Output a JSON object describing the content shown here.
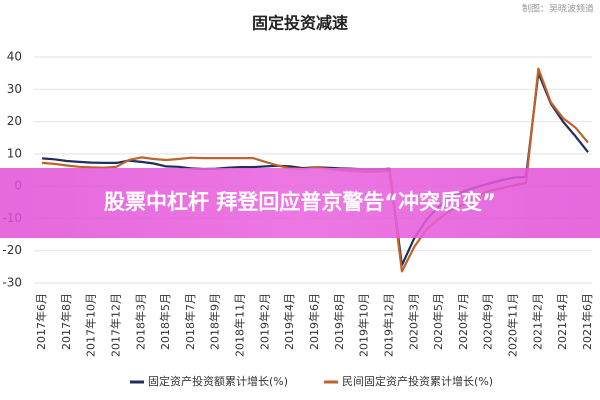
{
  "chart_data": {
    "type": "line",
    "title": "固定投资减速",
    "source": "制图：吴晓波频道",
    "categories": [
      "2017年6月",
      null,
      "2017年8月",
      null,
      "2017年10月",
      null,
      "2017年12月",
      null,
      "2018年3月",
      null,
      "2018年5月",
      null,
      "2018年7月",
      null,
      "2018年9月",
      null,
      "2018年11月",
      null,
      "2019年2月",
      null,
      "2019年4月",
      null,
      "2019年6月",
      null,
      "2019年8月",
      null,
      "2019年10月",
      null,
      "2019年12月",
      null,
      "2020年3月",
      null,
      "2020年5月",
      null,
      "2020年7月",
      null,
      "2020年9月",
      null,
      "2020年11月",
      null,
      "2021年2月",
      null,
      "2021年4月",
      null,
      "2021年6月"
    ],
    "series": [
      {
        "name": "固定资产投资额累计增长(%)",
        "color": "#1f2f5c",
        "values": [
          8.6,
          8.3,
          7.8,
          7.5,
          7.3,
          7.2,
          7.2,
          7.9,
          7.5,
          7.0,
          6.1,
          6.0,
          5.5,
          5.3,
          5.4,
          5.7,
          5.9,
          5.9,
          6.1,
          6.3,
          6.1,
          5.6,
          5.8,
          5.7,
          5.5,
          5.4,
          5.2,
          5.2,
          5.4,
          -24.5,
          -16.1,
          -10.3,
          -6.3,
          -3.1,
          -1.6,
          -0.3,
          0.8,
          1.8,
          2.6,
          2.9,
          35.0,
          25.6,
          19.9,
          15.4,
          10.5
        ]
      },
      {
        "name": "民间固定资产投资累计增长(%)",
        "color": "#c0622a",
        "values": [
          7.2,
          6.9,
          6.4,
          6.0,
          5.8,
          5.7,
          6.0,
          8.1,
          8.9,
          8.4,
          8.1,
          8.4,
          8.8,
          8.7,
          8.7,
          8.7,
          8.7,
          8.7,
          7.5,
          6.4,
          5.5,
          5.3,
          5.7,
          5.4,
          4.9,
          4.7,
          4.4,
          4.5,
          4.7,
          -26.4,
          -18.8,
          -13.3,
          -10.1,
          -7.3,
          -5.7,
          -3.3,
          -1.5,
          -0.7,
          0.2,
          1.0,
          36.4,
          26.0,
          21.0,
          18.1,
          13.5
        ]
      }
    ],
    "ylim": [
      -30,
      40
    ],
    "yticks": [
      -30,
      -20,
      -10,
      0,
      10,
      20,
      30,
      40
    ],
    "grid": true,
    "legend": "bottom"
  },
  "overlay": {
    "headline": "股票中杠杆 拜登回应普京警告“冲突质变”"
  }
}
